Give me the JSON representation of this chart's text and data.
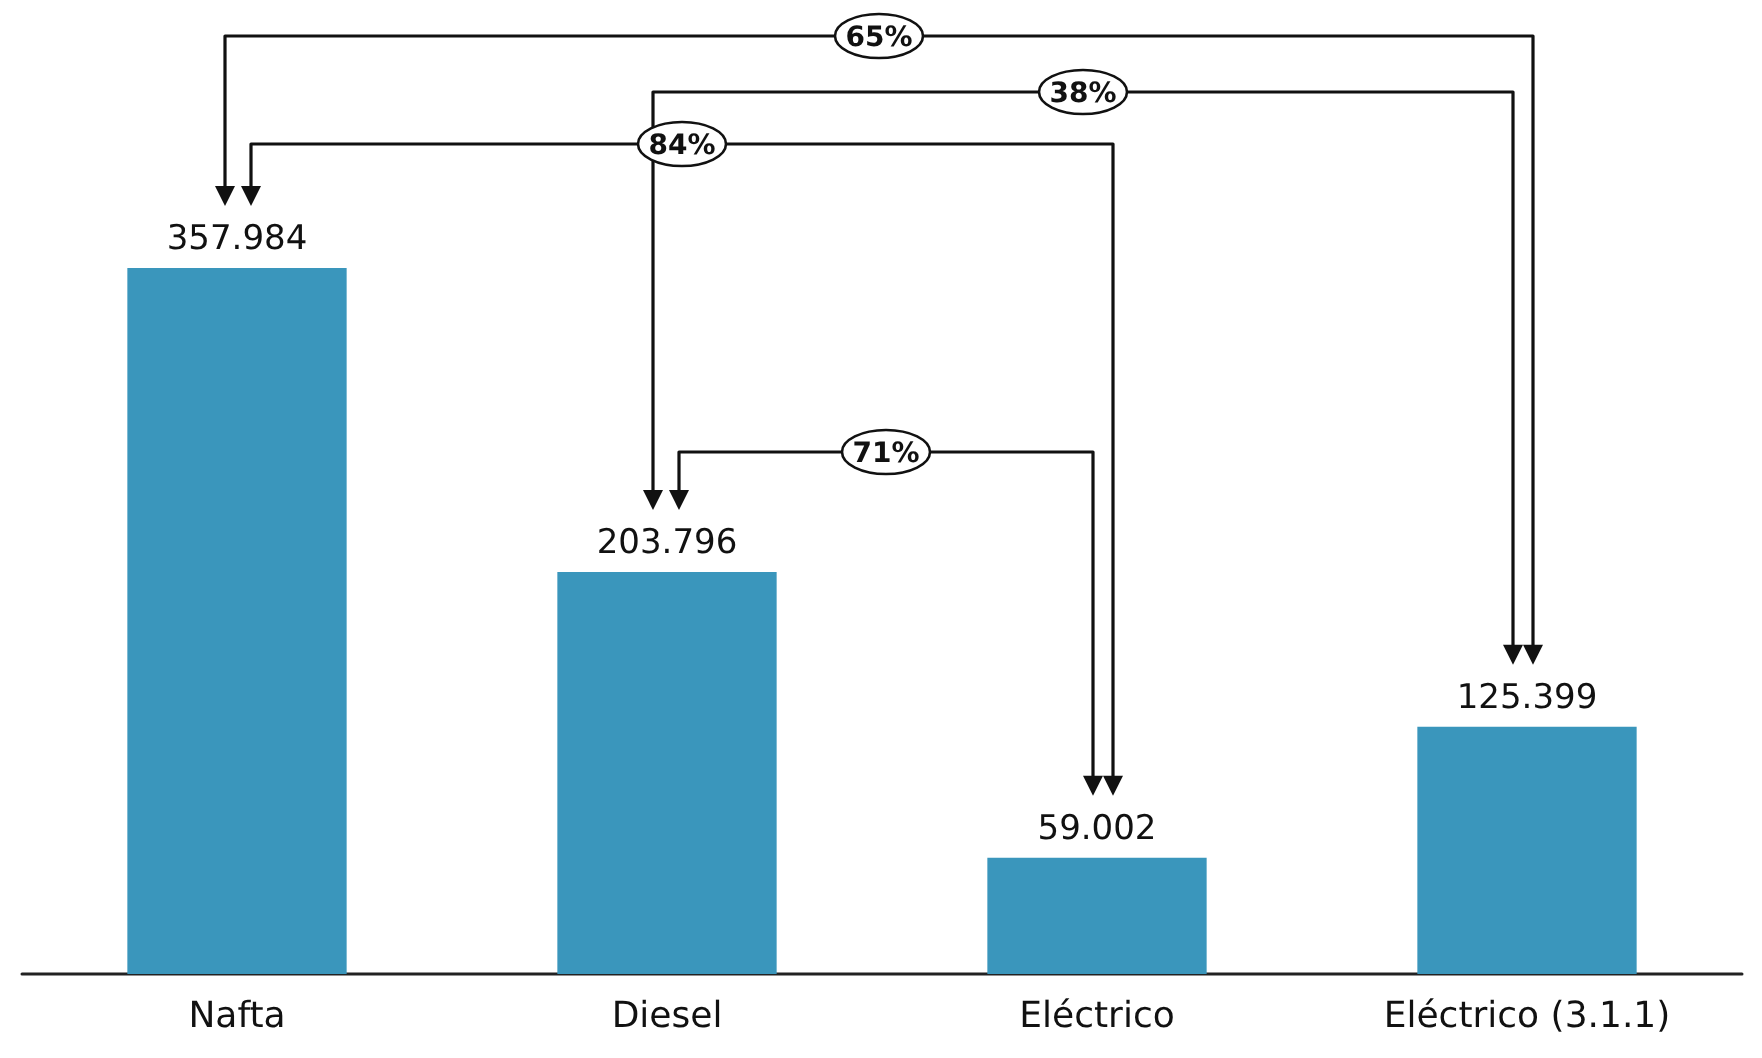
{
  "chart_data": {
    "type": "bar",
    "categories": [
      "Nafta",
      "Diesel",
      "Eléctrico",
      "Eléctrico (3.1.1)"
    ],
    "values": [
      357984,
      203796,
      59002,
      125399
    ],
    "value_labels": [
      "357.984",
      "203.796",
      "59.002",
      "125.399"
    ],
    "color": "#3a96bc",
    "annotations": [
      "65%",
      "38%",
      "84%",
      "71%"
    ]
  }
}
